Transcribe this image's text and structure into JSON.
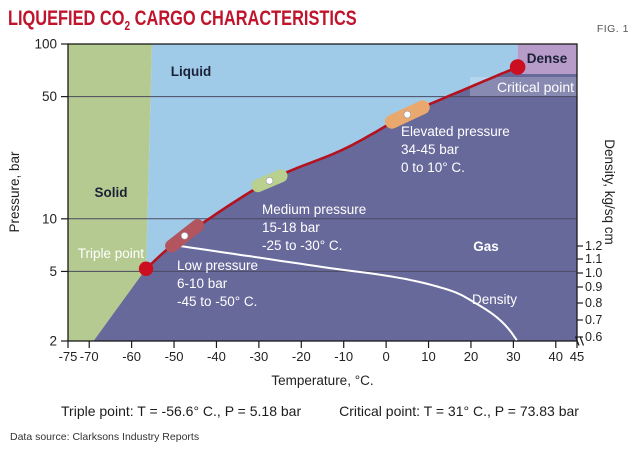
{
  "header": {
    "title_prefix": "LIQUEFIED CO",
    "title_sub": "2",
    "title_suffix": " CARGO CHARACTERISTICS",
    "fig_label": "FIG. 1"
  },
  "footer": {
    "triple_point_text": "Triple point: T = -56.6° C., P = 5.18 bar",
    "critical_point_text": "Critical point: T = 31° C., P = 73.83 bar",
    "data_source": "Data source: Clarksons Industry Reports"
  },
  "colors": {
    "title_red": "#c0142c",
    "fig_gray": "#555555",
    "solid_green": "#b5ca90",
    "liquid_blue": "#9fcbe9",
    "gas_slate": "#67699b",
    "dense_lavender": "#b79bc8",
    "curve_red": "#b5121f",
    "point_red": "#cb0f20",
    "pill_low": "#b2555f",
    "pill_medium": "#b9d08e",
    "pill_elevated": "#e9a96e",
    "grid": "#4a4a60",
    "axis": "#1a1a1a",
    "text_dark": "#1b2137",
    "text_white": "#ffffff"
  },
  "chart_data": {
    "type": "line",
    "title": "Liquefied CO2 cargo characteristics (pressure-temperature phase diagram)",
    "xlabel": "Temperature, °C.",
    "ylabel": "Pressure, bar",
    "y2label": "Density, kg/sq cm",
    "x_scale": "linear",
    "y_scale": "log",
    "xlim": [
      -75,
      45
    ],
    "ylim": [
      2,
      100
    ],
    "x_ticks": [
      -75,
      -70,
      -60,
      -50,
      -40,
      -30,
      -20,
      -10,
      0,
      10,
      20,
      30,
      40,
      45
    ],
    "y_ticks": [
      100,
      50,
      10,
      5,
      2
    ],
    "y2_ticks": [
      "1.2",
      "1.1",
      "1.0",
      "0.9",
      "0.8",
      "0.7",
      "0.6"
    ],
    "gridlines_at": [
      50,
      10,
      5
    ],
    "legend": "none",
    "regions": [
      {
        "label": "Solid"
      },
      {
        "label": "Liquid"
      },
      {
        "label": "Gas"
      },
      {
        "label": "Dense"
      }
    ],
    "melting_line": [
      [
        -56.6,
        5.18
      ],
      [
        -55.2,
        100
      ]
    ],
    "sublimation_line": [
      [
        -56.6,
        5.18
      ],
      [
        -69,
        2
      ]
    ],
    "saturation_curve": [
      [
        -56.6,
        5.18
      ],
      [
        -47.5,
        8.0
      ],
      [
        -27.5,
        16.5
      ],
      [
        -10,
        25
      ],
      [
        5,
        39.5
      ],
      [
        20,
        57
      ],
      [
        31,
        73.83
      ]
    ],
    "triple_point": {
      "label": "Triple point",
      "T": -56.6,
      "P": 5.18
    },
    "critical_point": {
      "label": "Critical point",
      "T": 31,
      "P": 73.83
    },
    "pressure_classes": [
      {
        "name": "low",
        "lines": [
          "Low pressure",
          "6-10 bar",
          "-45 to -50° C."
        ],
        "marker_T": -47.5,
        "marker_P": 8.0
      },
      {
        "name": "medium",
        "lines": [
          "Medium pressure",
          "15-18 bar",
          "-25 to -30° C."
        ],
        "marker_T": -27.5,
        "marker_P": 16.5
      },
      {
        "name": "elevated",
        "lines": [
          "Elevated pressure",
          "34-45 bar",
          "0 to 10° C."
        ],
        "marker_T": 5,
        "marker_P": 39.5
      }
    ],
    "density_curve": {
      "label": "Density",
      "points": [
        [
          -50.5,
          7.1
        ],
        [
          -32,
          6.1
        ],
        [
          -15,
          5.3
        ],
        [
          3,
          4.6
        ],
        [
          15,
          3.9
        ],
        [
          21,
          3.3
        ],
        [
          25.7,
          2.78
        ],
        [
          28.7,
          2.37
        ],
        [
          30.8,
          2.02
        ]
      ]
    }
  }
}
